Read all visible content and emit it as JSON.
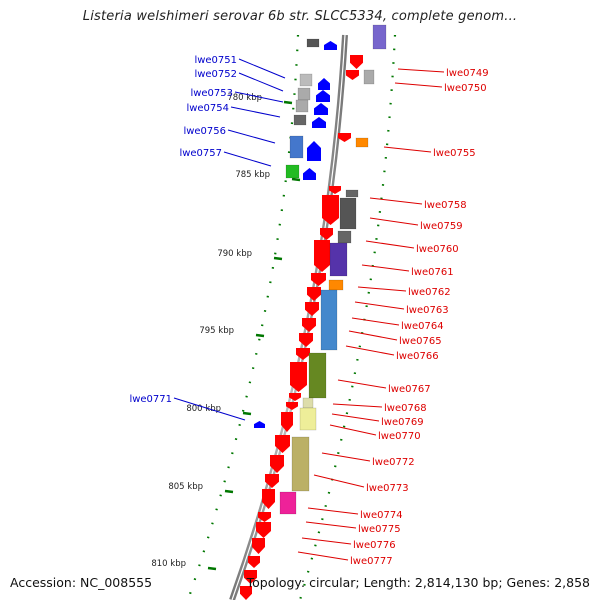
{
  "title": "Listeria welshimeri serovar 6b str. SLCC5334, complete genom...",
  "footer": {
    "accession": "Accession: NC_008555",
    "topology": "Topology: circular; Length: 2,814,130 bp; Genes: 2,858"
  },
  "colors": {
    "forward_label": "#0000cc",
    "reverse_label": "#dd0000",
    "cds_arrow_forward": "#0000ff",
    "cds_arrow_reverse": "#ff0000",
    "backbone": "#888888",
    "tick": "#007700"
  },
  "ticks": [
    {
      "label": "780 kbp"
    },
    {
      "label": "785 kbp"
    },
    {
      "label": "790 kbp"
    },
    {
      "label": "795 kbp"
    },
    {
      "label": "800 kbp"
    },
    {
      "label": "805 kbp"
    },
    {
      "label": "810 kbp"
    }
  ],
  "genes_left": [
    {
      "label": "lwe0751"
    },
    {
      "label": "lwe0752"
    },
    {
      "label": "lwe0753"
    },
    {
      "label": "lwe0754"
    },
    {
      "label": "lwe0756"
    },
    {
      "label": "lwe0757"
    },
    {
      "label": "lwe0771"
    }
  ],
  "genes_right": [
    {
      "label": "lwe0749"
    },
    {
      "label": "lwe0750"
    },
    {
      "label": "lwe0755"
    },
    {
      "label": "lwe0758"
    },
    {
      "label": "lwe0759"
    },
    {
      "label": "lwe0760"
    },
    {
      "label": "lwe0761"
    },
    {
      "label": "lwe0762"
    },
    {
      "label": "lwe0763"
    },
    {
      "label": "lwe0764"
    },
    {
      "label": "lwe0765"
    },
    {
      "label": "lwe0766"
    },
    {
      "label": "lwe0767"
    },
    {
      "label": "lwe0768"
    },
    {
      "label": "lwe0769"
    },
    {
      "label": "lwe0770"
    },
    {
      "label": "lwe0772"
    },
    {
      "label": "lwe0773"
    },
    {
      "label": "lwe0774"
    },
    {
      "label": "lwe0775"
    },
    {
      "label": "lwe0776"
    },
    {
      "label": "lwe0777"
    }
  ]
}
